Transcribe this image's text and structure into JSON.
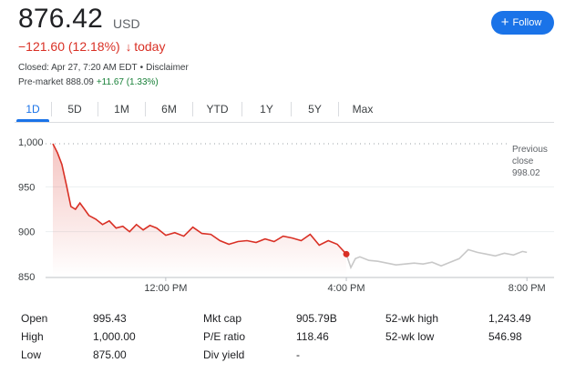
{
  "quote": {
    "price": "876.42",
    "currency": "USD",
    "change": "−121.60 (12.18%)",
    "arrow": "↓",
    "period": "today",
    "closed_text": "Closed: Apr 27, 7:20 AM EDT",
    "separator": "•",
    "disclaimer": "Disclaimer",
    "premarket_label": "Pre-market",
    "premarket_price": "888.09",
    "premarket_change": "+11.67 (1.33%)"
  },
  "follow": {
    "plus": "+",
    "label": "Follow"
  },
  "tabs": [
    "1D",
    "5D",
    "1M",
    "6M",
    "YTD",
    "1Y",
    "5Y",
    "Max"
  ],
  "active_tab": "1D",
  "chart_data": {
    "type": "line",
    "ylim": [
      850,
      1000
    ],
    "yticks": [
      "1,000",
      "950",
      "900",
      "850"
    ],
    "ytick_values": [
      1000,
      950,
      900,
      850
    ],
    "xtick_labels": [
      "12:00 PM",
      "4:00 PM",
      "8:00 PM"
    ],
    "xtick_hours": [
      12,
      16,
      20
    ],
    "xlim_hours": [
      9.5,
      20.5
    ],
    "previous_close": 998.02,
    "previous_close_label": [
      "Previous",
      "close",
      "998.02"
    ],
    "colors": {
      "regular": "#d93025",
      "extended": "#c8c8c8",
      "fill": "#fce8e6"
    },
    "series": [
      {
        "session": "regular",
        "x": [
          9.5,
          9.6,
          9.7,
          9.8,
          9.9,
          10.0,
          10.1,
          10.2,
          10.3,
          10.45,
          10.6,
          10.75,
          10.9,
          11.05,
          11.2,
          11.35,
          11.5,
          11.65,
          11.8,
          12.0,
          12.2,
          12.4,
          12.6,
          12.8,
          13.0,
          13.2,
          13.4,
          13.6,
          13.8,
          14.0,
          14.2,
          14.4,
          14.6,
          14.8,
          15.0,
          15.2,
          15.4,
          15.6,
          15.8,
          16.0
        ],
        "y": [
          998,
          988,
          975,
          952,
          928,
          925,
          932,
          925,
          918,
          914,
          908,
          912,
          904,
          906,
          900,
          908,
          902,
          907,
          904,
          896,
          899,
          895,
          905,
          898,
          897,
          890,
          886,
          889,
          890,
          888,
          892,
          889,
          895,
          893,
          890,
          897,
          885,
          890,
          886,
          875
        ]
      },
      {
        "session": "extended",
        "x": [
          16.0,
          16.1,
          16.2,
          16.3,
          16.5,
          16.7,
          16.9,
          17.1,
          17.3,
          17.5,
          17.7,
          17.9,
          18.1,
          18.3,
          18.5,
          18.7,
          18.9,
          19.1,
          19.3,
          19.5,
          19.7,
          19.9,
          20.0
        ],
        "y": [
          875,
          860,
          870,
          872,
          868,
          867,
          865,
          863,
          864,
          865,
          864,
          866,
          862,
          866,
          870,
          880,
          877,
          875,
          873,
          876,
          874,
          878,
          877
        ]
      }
    ]
  },
  "stats": [
    {
      "label": "Open",
      "value": "995.43"
    },
    {
      "label": "High",
      "value": "1,000.00"
    },
    {
      "label": "Low",
      "value": "875.00"
    },
    {
      "label": "Mkt cap",
      "value": "905.79B"
    },
    {
      "label": "P/E ratio",
      "value": "118.46"
    },
    {
      "label": "Div yield",
      "value": "-"
    },
    {
      "label": "52-wk high",
      "value": "1,243.49"
    },
    {
      "label": "52-wk low",
      "value": "546.98"
    }
  ]
}
